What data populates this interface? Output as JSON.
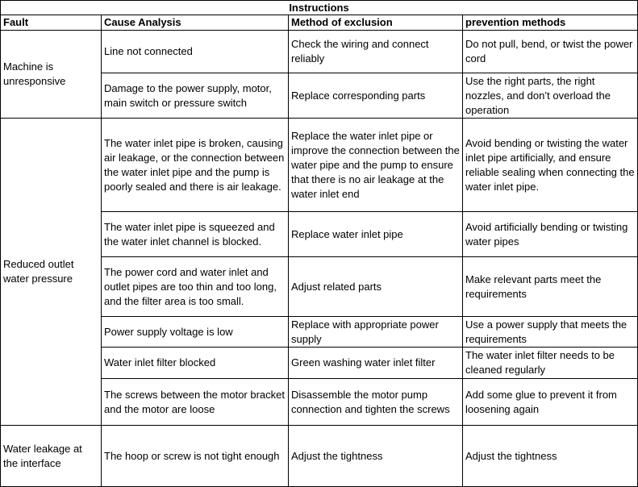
{
  "title": "Instructions",
  "headers": [
    "Fault",
    "Cause Analysis",
    "Method of exclusion",
    "prevention methods"
  ],
  "groups": [
    {
      "fault": "Machine is unresponsive",
      "rows": [
        {
          "cause": "Line not connected",
          "method": "Check the wiring and connect reliably",
          "prevention": "Do not pull, bend, or twist the power cord"
        },
        {
          "cause": "Damage to the power supply, motor, main switch or pressure switch",
          "method": "Replace corresponding parts",
          "prevention": "Use the right parts, the right nozzles, and don’t overload the operation"
        }
      ]
    },
    {
      "fault": "Reduced outlet water pressure",
      "rows": [
        {
          "cause": "The water inlet pipe is broken, causing air leakage, or the connection between the water inlet pipe and the pump is poorly sealed and there is air leakage.",
          "method": "Replace the water inlet pipe or improve the connection between the water pipe and the pump to ensure that there is no air leakage at the water inlet end",
          "prevention": "Avoid bending or twisting the water inlet pipe artificially, and ensure reliable sealing when connecting the water inlet pipe."
        },
        {
          "cause": "The water inlet pipe is squeezed and the water inlet channel is blocked.",
          "method": "Replace water inlet pipe",
          "prevention": "Avoid artificially bending or twisting water pipes"
        },
        {
          "cause": "The power cord and water inlet and outlet pipes are too thin and too long, and the filter area is too small.",
          "method": "Adjust related parts",
          "prevention": "Make relevant parts meet the requirements"
        },
        {
          "cause": "Power supply voltage is low",
          "method": "Replace with appropriate power supply",
          "prevention": "Use a power supply that meets the requirements"
        },
        {
          "cause": "Water inlet filter blocked",
          "method": "Green washing water inlet filter",
          "prevention": "The water inlet filter needs to be cleaned regularly"
        },
        {
          "cause": "The screws between the motor bracket and the motor are loose",
          "method": "Disassemble the motor pump connection and tighten the screws",
          "prevention": "Add some glue to prevent it from loosening again"
        }
      ]
    },
    {
      "fault": "Water leakage at the interface",
      "rows": [
        {
          "cause": "The hoop or screw is not tight enough",
          "method": "Adjust the tightness",
          "prevention": "Adjust the tightness"
        }
      ]
    }
  ]
}
